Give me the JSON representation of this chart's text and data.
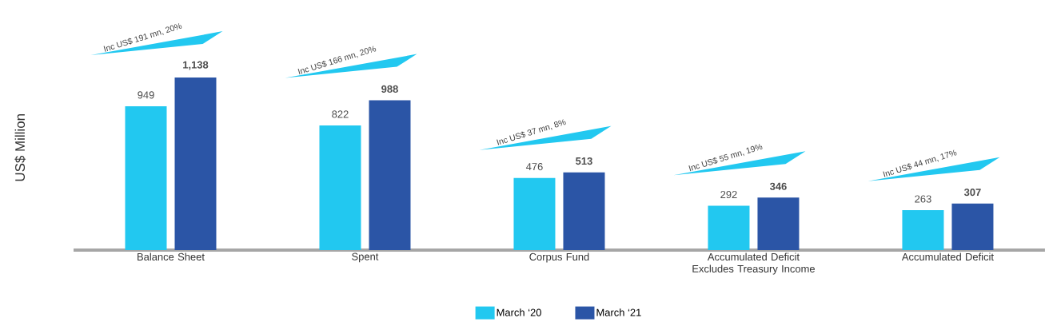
{
  "chart_data": {
    "type": "bar",
    "ylabel": "US$ Million",
    "categories": [
      "Balance Sheet",
      "Spent",
      "Corpus Fund",
      "Accumulated Deficit Excludes Treasury Income",
      "Accumulated Deficit"
    ],
    "series": [
      {
        "name": "March ‘20",
        "color": "#22c8f0",
        "values": [
          949,
          822,
          476,
          292,
          263
        ],
        "value_labels": [
          "949",
          "822",
          "476",
          "292",
          "263"
        ]
      },
      {
        "name": "March ‘21",
        "color": "#2b55a6",
        "values": [
          1138,
          988,
          513,
          346,
          307
        ],
        "value_labels": [
          "1,138",
          "988",
          "513",
          "346",
          "307"
        ]
      }
    ],
    "legend": "bottom",
    "annotations": [
      "Inc US$ 191 mn, 20%",
      "Inc US$ 166 mn, 20%",
      "Inc US$ 37 mn, 8%",
      "Inc US$ 55 mn, 19%",
      "Inc US$ 44 mn, 17%"
    ]
  }
}
